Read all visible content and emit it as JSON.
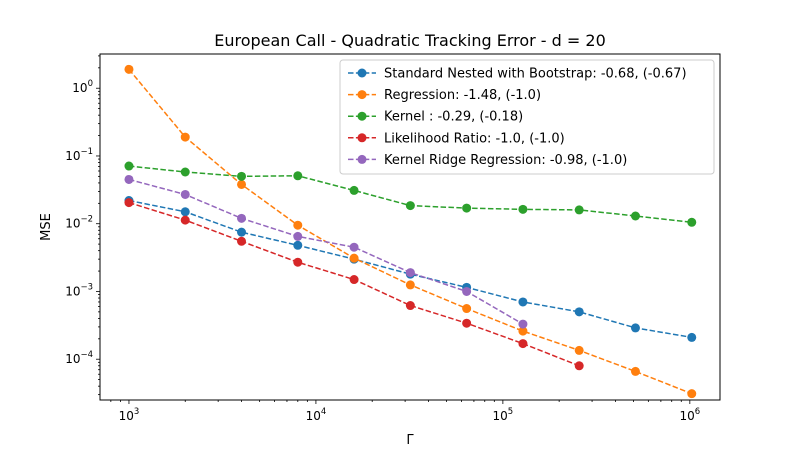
{
  "chart_data": {
    "type": "line",
    "title": "European Call - Quadratic Tracking Error - d = 20",
    "xlabel": "Γ",
    "ylabel": "MSE",
    "xscale": "log",
    "yscale": "log",
    "xlim": [
      700,
      1450000
    ],
    "ylim": [
      2.5e-05,
      3.2
    ],
    "grid": false,
    "legend_position": "top-right",
    "x_ticks": [
      {
        "value": 1000,
        "base": "10",
        "exp": "3"
      },
      {
        "value": 10000,
        "base": "10",
        "exp": "4"
      },
      {
        "value": 100000,
        "base": "10",
        "exp": "5"
      },
      {
        "value": 1000000,
        "base": "10",
        "exp": "6"
      }
    ],
    "y_ticks": [
      {
        "value": 0.0001,
        "base": "10",
        "exp": "−4"
      },
      {
        "value": 0.001,
        "base": "10",
        "exp": "−3"
      },
      {
        "value": 0.01,
        "base": "10",
        "exp": "−2"
      },
      {
        "value": 0.1,
        "base": "10",
        "exp": "−1"
      },
      {
        "value": 1,
        "base": "10",
        "exp": "0"
      }
    ],
    "series": [
      {
        "name": "Standard Nested with Bootstrap: -0.68, (-0.67)",
        "color": "#1f77b4",
        "x": [
          1000,
          2000,
          4000,
          8000,
          16000,
          32000,
          64000,
          128000,
          256000,
          512000,
          1024000
        ],
        "y": [
          0.022,
          0.015,
          0.0075,
          0.0048,
          0.003,
          0.0018,
          0.00115,
          0.0007,
          0.0005,
          0.00029,
          0.00021
        ]
      },
      {
        "name": "Regression: -1.48, (-1.0)",
        "color": "#ff7f0e",
        "x": [
          1000,
          2000,
          4000,
          8000,
          16000,
          32000,
          64000,
          128000,
          256000,
          512000,
          1024000
        ],
        "y": [
          1.9,
          0.19,
          0.038,
          0.0095,
          0.0031,
          0.00125,
          0.00056,
          0.00026,
          0.000135,
          6.6e-05,
          3.1e-05
        ]
      },
      {
        "name": "Kernel : -0.29, (-0.18)",
        "color": "#2ca02c",
        "x": [
          1000,
          2000,
          4000,
          8000,
          16000,
          32000,
          64000,
          128000,
          256000,
          512000,
          1024000
        ],
        "y": [
          0.071,
          0.058,
          0.05,
          0.051,
          0.031,
          0.0185,
          0.017,
          0.0163,
          0.016,
          0.013,
          0.0105
        ]
      },
      {
        "name": "Likelihood Ratio: -1.0, (-1.0)",
        "color": "#d62728",
        "x": [
          1000,
          2000,
          4000,
          8000,
          16000,
          32000,
          64000,
          128000,
          256000
        ],
        "y": [
          0.0205,
          0.0113,
          0.0055,
          0.0027,
          0.0015,
          0.00062,
          0.00034,
          0.00017,
          8e-05
        ]
      },
      {
        "name": "Kernel Ridge Regression: -0.98, (-1.0)",
        "color": "#9467bd",
        "x": [
          1000,
          2000,
          4000,
          8000,
          16000,
          32000,
          64000,
          128000
        ],
        "y": [
          0.045,
          0.027,
          0.012,
          0.0065,
          0.0045,
          0.0019,
          0.001,
          0.00033
        ]
      }
    ]
  }
}
